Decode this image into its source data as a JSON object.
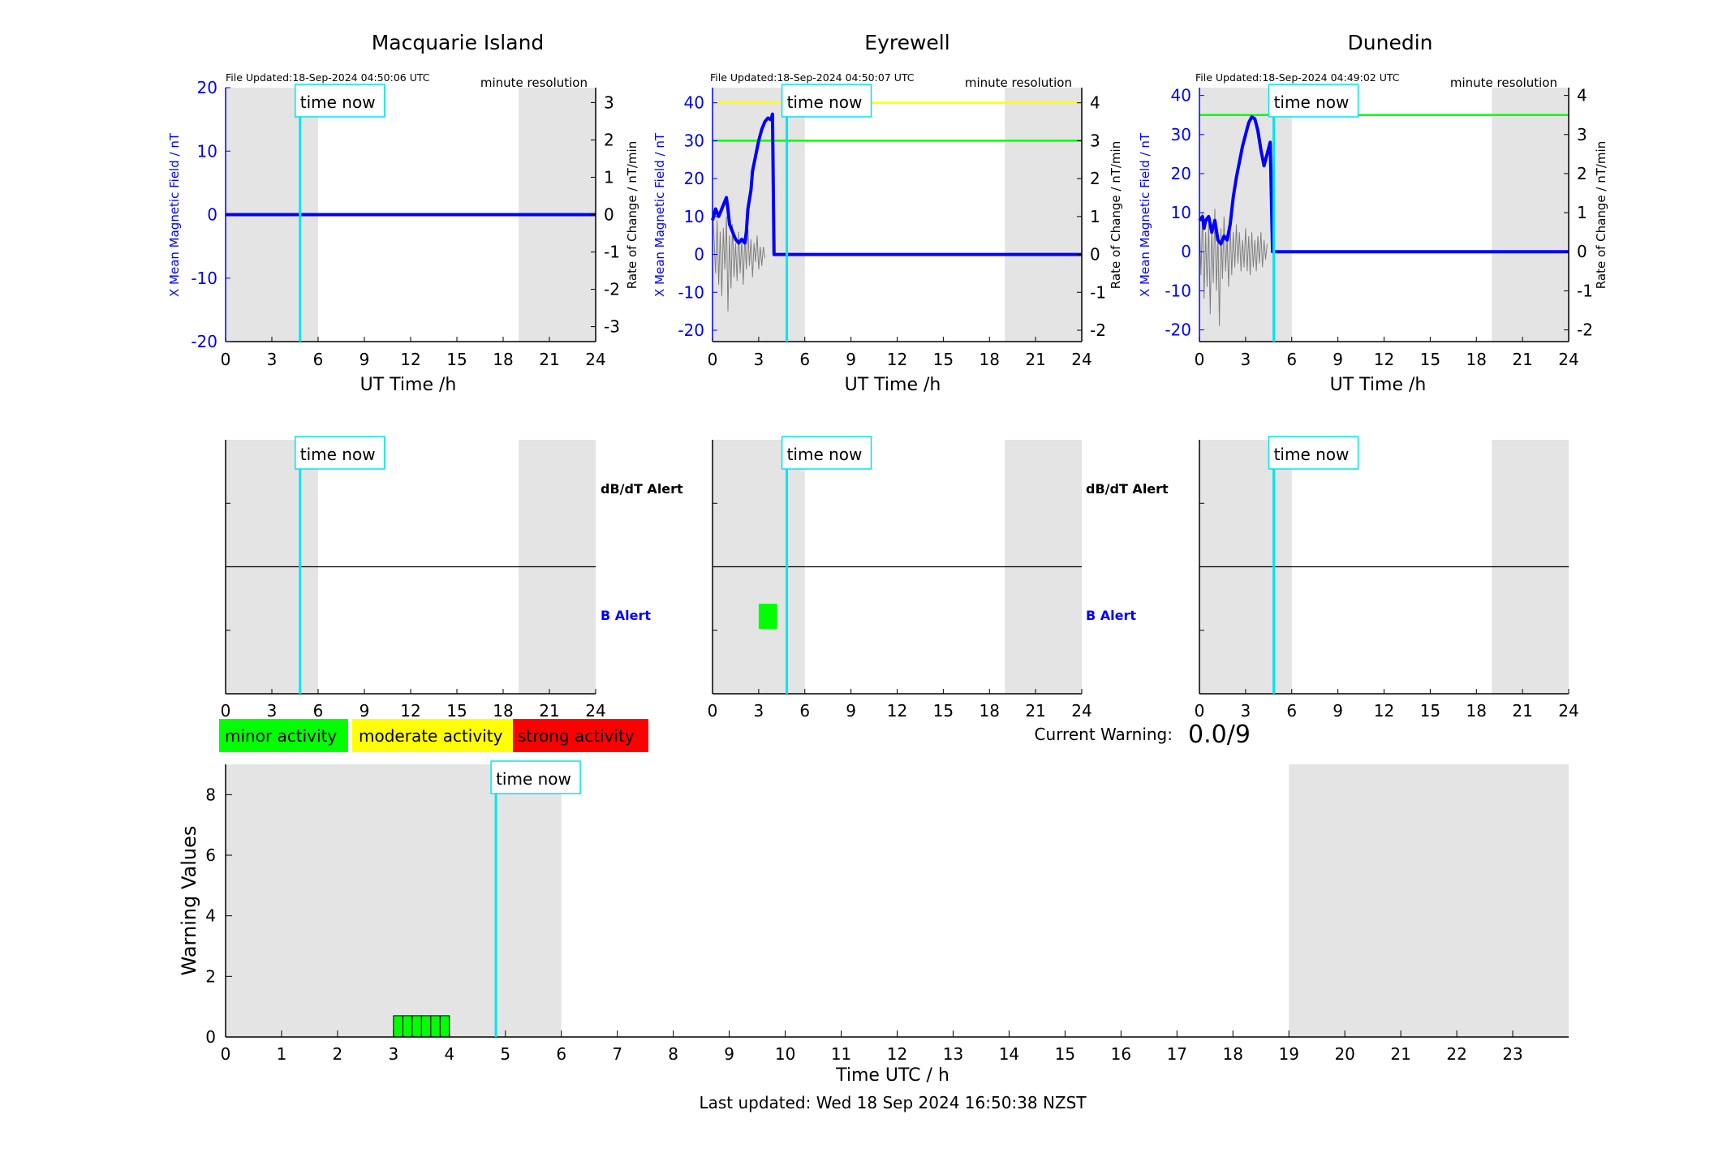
{
  "colors": {
    "night_shade": "#e4e4e4",
    "time_now": "#00e5ee",
    "b_trace": "#0000ff",
    "rate_trace": "#808080",
    "minor": "#00ff00",
    "moderate": "#ffff00",
    "strong": "#ff0000",
    "axis_blue": "#0000ff"
  },
  "labels": {
    "time_now": "time now",
    "file_updated_prefix": "File Updated:",
    "resolution": "minute resolution",
    "x_label_top": "UT Time /h",
    "y_left": "X Mean Magnetic Field / nT",
    "y_right": "Rate of Change / nT/min",
    "dbdt_alert": "dB/dT Alert",
    "b_alert": "B Alert",
    "current_warning_label": "Current Warning:",
    "current_warning_value": "0.0/9",
    "warning_y_label": "Warning Values",
    "warning_x_label": "Time UTC / h",
    "last_updated": "Last updated: Wed 18 Sep 2024 16:50:38 NZST"
  },
  "legend": [
    {
      "label": "minor activity",
      "color": "#00ff00"
    },
    {
      "label": "moderate activity",
      "color": "#ffff00"
    },
    {
      "label": "strong activity",
      "color": "#ff0000"
    }
  ],
  "chart_data": [
    {
      "type": "line",
      "station": "Macquarie Island",
      "file_updated": "18-Sep-2024 04:50:06 UTC",
      "xlim": [
        0,
        24
      ],
      "x_ticks": [
        0,
        3,
        6,
        9,
        12,
        15,
        18,
        21,
        24
      ],
      "ylim_left": [
        -20,
        20
      ],
      "y_ticks_left": [
        -20,
        -10,
        0,
        10,
        20
      ],
      "ylim_right": [
        -3.4,
        3.4
      ],
      "y_ticks_right": [
        -3,
        -2,
        -1,
        0,
        1,
        2,
        3
      ],
      "time_now": 4.83,
      "night_shading": [
        [
          0,
          6
        ],
        [
          19,
          24
        ]
      ],
      "threshold_lines": [],
      "b_series": [
        [
          0,
          0
        ],
        [
          24,
          0
        ]
      ],
      "rate_series": [],
      "alerts": []
    },
    {
      "type": "line",
      "station": "Eyrewell",
      "file_updated": "18-Sep-2024 04:50:07 UTC",
      "xlim": [
        0,
        24
      ],
      "x_ticks": [
        0,
        3,
        6,
        9,
        12,
        15,
        18,
        21,
        24
      ],
      "ylim_left": [
        -23,
        44
      ],
      "y_ticks_left": [
        -20,
        -10,
        0,
        10,
        20,
        30,
        40
      ],
      "ylim_right": [
        -2.3,
        4.4
      ],
      "y_ticks_right": [
        -2,
        -1,
        0,
        1,
        2,
        3,
        4
      ],
      "time_now": 4.83,
      "night_shading": [
        [
          0,
          6
        ],
        [
          19,
          24
        ]
      ],
      "threshold_lines": [
        {
          "value": 40,
          "color": "#ffff00"
        },
        {
          "value": 30,
          "color": "#00ff00"
        }
      ],
      "b_series": [
        [
          0,
          9
        ],
        [
          0.2,
          12
        ],
        [
          0.4,
          10
        ],
        [
          0.6,
          12
        ],
        [
          0.8,
          14
        ],
        [
          0.9,
          15
        ],
        [
          1.0,
          12
        ],
        [
          1.1,
          8
        ],
        [
          1.3,
          6
        ],
        [
          1.5,
          4
        ],
        [
          1.7,
          3
        ],
        [
          1.9,
          4
        ],
        [
          2.1,
          3
        ],
        [
          2.2,
          6
        ],
        [
          2.3,
          12
        ],
        [
          2.5,
          17
        ],
        [
          2.6,
          22
        ],
        [
          2.8,
          26
        ],
        [
          3.0,
          30
        ],
        [
          3.2,
          33
        ],
        [
          3.4,
          35
        ],
        [
          3.6,
          36
        ],
        [
          3.8,
          35.5
        ],
        [
          3.9,
          37
        ],
        [
          4.0,
          0
        ],
        [
          24,
          0
        ]
      ],
      "rate_series": [
        [
          0,
          1.2
        ],
        [
          0.1,
          0.4
        ],
        [
          0.2,
          -0.5
        ],
        [
          0.3,
          0.9
        ],
        [
          0.4,
          -0.8
        ],
        [
          0.5,
          0.6
        ],
        [
          0.6,
          -1.1
        ],
        [
          0.7,
          0.7
        ],
        [
          0.8,
          -0.4
        ],
        [
          0.9,
          1.0
        ],
        [
          1.0,
          -1.5
        ],
        [
          1.1,
          0.5
        ],
        [
          1.2,
          -0.9
        ],
        [
          1.3,
          0.8
        ],
        [
          1.4,
          -0.6
        ],
        [
          1.5,
          0.3
        ],
        [
          1.6,
          -0.7
        ],
        [
          1.7,
          0.6
        ],
        [
          1.8,
          -0.5
        ],
        [
          1.9,
          0.4
        ],
        [
          2.0,
          -0.8
        ],
        [
          2.1,
          0.5
        ],
        [
          2.2,
          -0.4
        ],
        [
          2.3,
          0.7
        ],
        [
          2.4,
          -0.3
        ],
        [
          2.5,
          0.4
        ],
        [
          2.6,
          -0.6
        ],
        [
          2.7,
          0.3
        ],
        [
          2.8,
          -0.2
        ],
        [
          2.9,
          0.5
        ],
        [
          3.0,
          -0.4
        ],
        [
          3.1,
          0.2
        ],
        [
          3.2,
          -0.3
        ],
        [
          3.3,
          0.2
        ],
        [
          3.4,
          -0.1
        ]
      ],
      "alerts": [
        {
          "row": "B Alert",
          "start": 3.0,
          "end": 4.2,
          "color": "#00ff00"
        }
      ]
    },
    {
      "type": "line",
      "station": "Dunedin",
      "file_updated": "18-Sep-2024 04:49:02 UTC",
      "xlim": [
        0,
        24
      ],
      "x_ticks": [
        0,
        3,
        6,
        9,
        12,
        15,
        18,
        21,
        24
      ],
      "ylim_left": [
        -23,
        42
      ],
      "y_ticks_left": [
        -20,
        -10,
        0,
        10,
        20,
        30,
        40
      ],
      "ylim_right": [
        -2.3,
        4.2
      ],
      "y_ticks_right": [
        -2,
        -1,
        0,
        1,
        2,
        3,
        4
      ],
      "time_now": 4.83,
      "night_shading": [
        [
          0,
          6
        ],
        [
          19,
          24
        ]
      ],
      "threshold_lines": [
        {
          "value": 35,
          "color": "#00ff00"
        }
      ],
      "b_series": [
        [
          0,
          8
        ],
        [
          0.2,
          9
        ],
        [
          0.3,
          6
        ],
        [
          0.4,
          8
        ],
        [
          0.6,
          9
        ],
        [
          0.8,
          5
        ],
        [
          1.0,
          8
        ],
        [
          1.2,
          3
        ],
        [
          1.4,
          2
        ],
        [
          1.6,
          4
        ],
        [
          1.8,
          3
        ],
        [
          2.0,
          7
        ],
        [
          2.2,
          14
        ],
        [
          2.4,
          19
        ],
        [
          2.6,
          23
        ],
        [
          2.8,
          27
        ],
        [
          3.0,
          30
        ],
        [
          3.2,
          33
        ],
        [
          3.4,
          34.5
        ],
        [
          3.6,
          34
        ],
        [
          3.8,
          31
        ],
        [
          4.0,
          26
        ],
        [
          4.2,
          22
        ],
        [
          4.4,
          25
        ],
        [
          4.6,
          28
        ],
        [
          4.75,
          0
        ],
        [
          24,
          0
        ]
      ],
      "rate_series": [
        [
          0,
          0.8
        ],
        [
          0.1,
          -0.6
        ],
        [
          0.2,
          1.0
        ],
        [
          0.3,
          -1.2
        ],
        [
          0.4,
          0.5
        ],
        [
          0.5,
          -0.9
        ],
        [
          0.6,
          0.7
        ],
        [
          0.7,
          -1.6
        ],
        [
          0.8,
          0.6
        ],
        [
          0.9,
          -0.8
        ],
        [
          1.0,
          1.1
        ],
        [
          1.1,
          -1.0
        ],
        [
          1.2,
          0.5
        ],
        [
          1.3,
          -1.9
        ],
        [
          1.4,
          0.6
        ],
        [
          1.5,
          -0.7
        ],
        [
          1.6,
          0.9
        ],
        [
          1.7,
          -0.5
        ],
        [
          1.8,
          0.4
        ],
        [
          1.9,
          -0.9
        ],
        [
          2.0,
          0.8
        ],
        [
          2.1,
          -0.6
        ],
        [
          2.2,
          0.5
        ],
        [
          2.3,
          -0.4
        ],
        [
          2.4,
          0.7
        ],
        [
          2.5,
          -0.3
        ],
        [
          2.6,
          0.5
        ],
        [
          2.7,
          -0.5
        ],
        [
          2.8,
          0.3
        ],
        [
          2.9,
          -0.4
        ],
        [
          3.0,
          0.6
        ],
        [
          3.1,
          -0.5
        ],
        [
          3.2,
          0.4
        ],
        [
          3.3,
          -0.6
        ],
        [
          3.4,
          0.5
        ],
        [
          3.5,
          -0.4
        ],
        [
          3.6,
          0.3
        ],
        [
          3.7,
          -0.5
        ],
        [
          3.8,
          0.4
        ],
        [
          3.9,
          -0.3
        ],
        [
          4.0,
          0.5
        ],
        [
          4.1,
          -0.4
        ],
        [
          4.2,
          0.3
        ],
        [
          4.3,
          -0.2
        ],
        [
          4.4,
          0.2
        ]
      ],
      "alerts": []
    },
    {
      "type": "bar",
      "title": "Warning Values",
      "xlim": [
        0,
        24
      ],
      "x_ticks": [
        0,
        1,
        2,
        3,
        4,
        5,
        6,
        7,
        8,
        9,
        10,
        11,
        12,
        13,
        14,
        15,
        16,
        17,
        18,
        19,
        20,
        21,
        22,
        23
      ],
      "ylim": [
        0,
        9
      ],
      "y_ticks": [
        0,
        2,
        4,
        6,
        8
      ],
      "time_now": 4.83,
      "night_shading": [
        [
          0,
          6
        ],
        [
          19,
          24
        ]
      ],
      "bar_width": 0.1667,
      "bars": [
        {
          "x": 3.0,
          "value": 0.7,
          "color": "#00ff00"
        },
        {
          "x": 3.1667,
          "value": 0.7,
          "color": "#00ff00"
        },
        {
          "x": 3.3333,
          "value": 0.7,
          "color": "#00ff00"
        },
        {
          "x": 3.5,
          "value": 0.7,
          "color": "#00ff00"
        },
        {
          "x": 3.6667,
          "value": 0.7,
          "color": "#00ff00"
        },
        {
          "x": 3.8333,
          "value": 0.7,
          "color": "#00ff00"
        }
      ]
    }
  ]
}
